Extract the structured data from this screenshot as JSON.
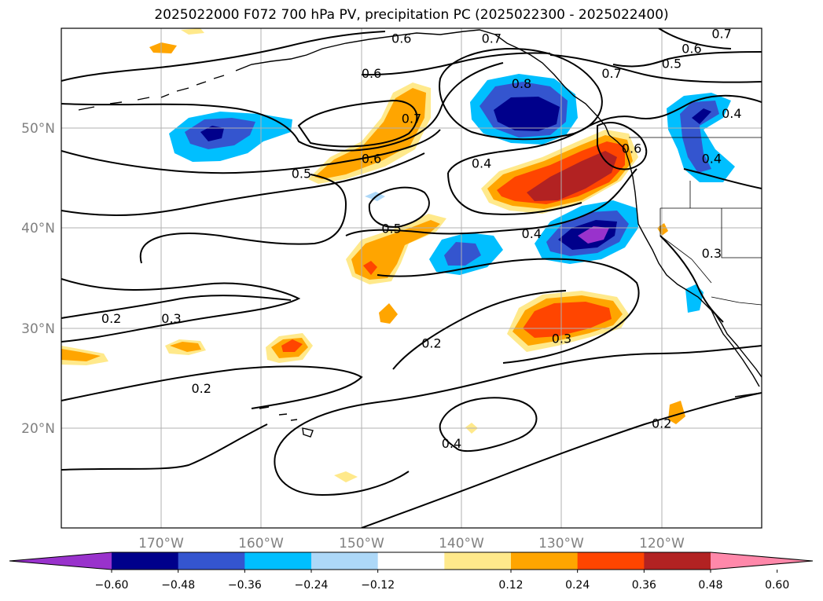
{
  "title": "2025022000 F072 700 hPa PV, precipitation PC (2025022300 - 2025022400)",
  "map": {
    "lon_range": [
      -180,
      -110
    ],
    "lat_range": [
      10,
      60
    ],
    "lon_ticks": [
      {
        "value": -170,
        "label": "170°W"
      },
      {
        "value": -160,
        "label": "160°W"
      },
      {
        "value": -150,
        "label": "150°W"
      },
      {
        "value": -140,
        "label": "140°W"
      },
      {
        "value": -130,
        "label": "130°W"
      },
      {
        "value": -120,
        "label": "120°W"
      }
    ],
    "lat_ticks": [
      {
        "value": 20,
        "label": "20°N"
      },
      {
        "value": 30,
        "label": "30°N"
      },
      {
        "value": 40,
        "label": "40°N"
      },
      {
        "value": 50,
        "label": "50°N"
      }
    ],
    "grid": true,
    "contour_labels": [
      {
        "text": "0.6",
        "lon": -146,
        "lat": 59
      },
      {
        "text": "0.7",
        "lon": -137,
        "lat": 59
      },
      {
        "text": "0.7",
        "lon": -114,
        "lat": 59.5
      },
      {
        "text": "0.6",
        "lon": -117,
        "lat": 58
      },
      {
        "text": "0.5",
        "lon": -119,
        "lat": 56.5
      },
      {
        "text": "0.7",
        "lon": -125,
        "lat": 55.5
      },
      {
        "text": "0.6",
        "lon": -149,
        "lat": 55.5
      },
      {
        "text": "0.8",
        "lon": -134,
        "lat": 54.5
      },
      {
        "text": "0.7",
        "lon": -145,
        "lat": 51
      },
      {
        "text": "0.4",
        "lon": -113,
        "lat": 51.5
      },
      {
        "text": "0.6",
        "lon": -149,
        "lat": 47
      },
      {
        "text": "0.5",
        "lon": -156,
        "lat": 45.5
      },
      {
        "text": "0.4",
        "lon": -138,
        "lat": 46.5
      },
      {
        "text": "0.6",
        "lon": -123,
        "lat": 48
      },
      {
        "text": "0.4",
        "lon": -115,
        "lat": 47
      },
      {
        "text": "0.5",
        "lon": -147,
        "lat": 40
      },
      {
        "text": "0.4",
        "lon": -133,
        "lat": 39.5
      },
      {
        "text": "0.3",
        "lon": -115,
        "lat": 37.5
      },
      {
        "text": "0.2",
        "lon": -175,
        "lat": 31
      },
      {
        "text": "0.3",
        "lon": -169,
        "lat": 31
      },
      {
        "text": "0.2",
        "lon": -143,
        "lat": 28.5
      },
      {
        "text": "0.3",
        "lon": -130,
        "lat": 29
      },
      {
        "text": "0.2",
        "lon": -166,
        "lat": 24
      },
      {
        "text": "0.2",
        "lon": -120,
        "lat": 20.5
      },
      {
        "text": "0.4",
        "lon": -141,
        "lat": 18.5
      }
    ]
  },
  "colorbar": {
    "ticks": [
      "−0.60",
      "−0.48",
      "−0.36",
      "−0.24",
      "−0.12",
      "0.12",
      "0.24",
      "0.36",
      "0.48",
      "0.60"
    ],
    "colors": [
      "#9932cc",
      "#00008b",
      "#3455cf",
      "#00bfff",
      "#add8f8",
      "#ffffff",
      "#ffe98b",
      "#ffa500",
      "#ff4500",
      "#b22222",
      "#ff88aa"
    ]
  }
}
